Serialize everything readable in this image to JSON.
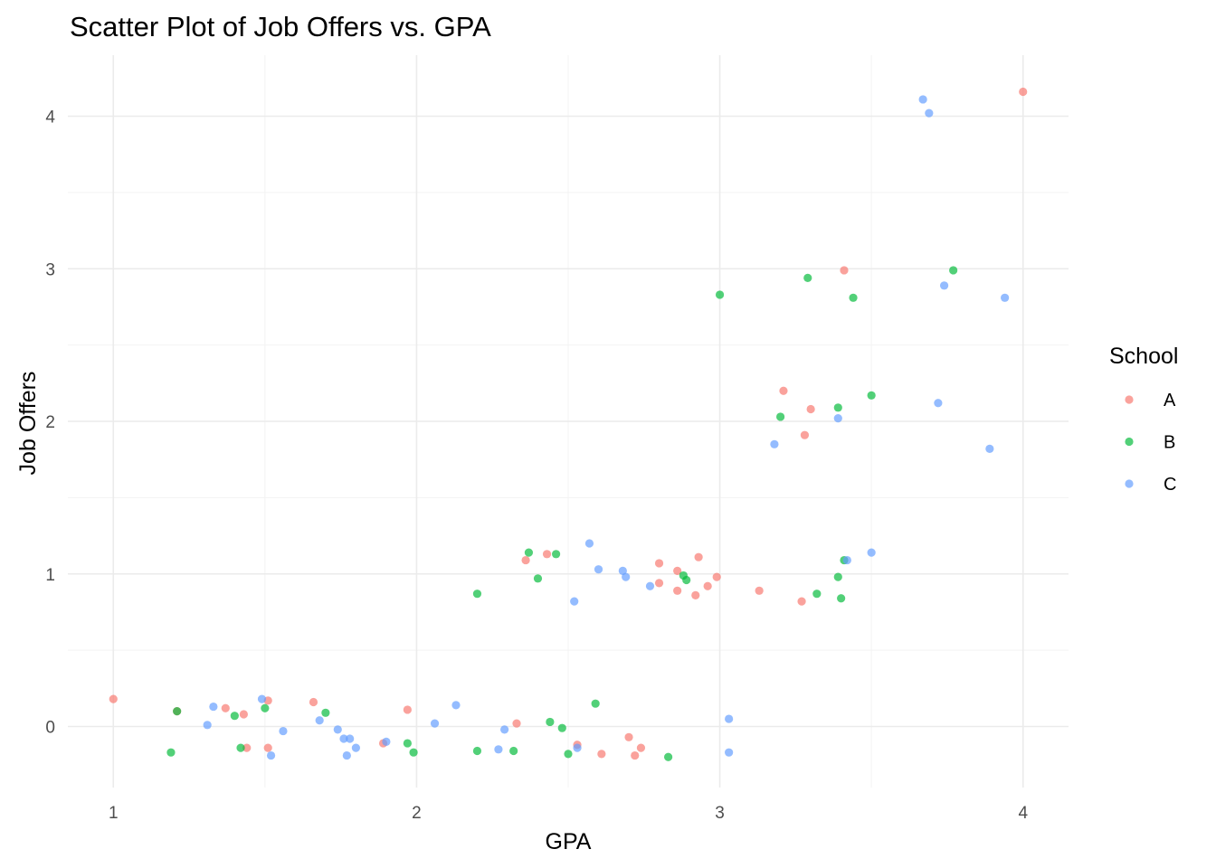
{
  "chart_data": {
    "type": "scatter",
    "title": "Scatter Plot of Job Offers vs. GPA",
    "xlabel": "GPA",
    "ylabel": "Job Offers",
    "xlim": [
      0.85,
      4.15
    ],
    "ylim": [
      -0.4,
      4.4
    ],
    "x_ticks": [
      1,
      2,
      3,
      4
    ],
    "y_ticks": [
      0,
      1,
      2,
      3,
      4
    ],
    "grid": true,
    "legend": {
      "title": "School",
      "position": "right"
    },
    "series": [
      {
        "name": "A",
        "color": "#F8766D",
        "points": [
          [
            1.0,
            0.18
          ],
          [
            1.21,
            0.1
          ],
          [
            1.37,
            0.12
          ],
          [
            1.43,
            0.08
          ],
          [
            1.44,
            -0.14
          ],
          [
            1.51,
            -0.14
          ],
          [
            1.51,
            0.17
          ],
          [
            1.66,
            0.16
          ],
          [
            1.89,
            -0.11
          ],
          [
            1.97,
            0.11
          ],
          [
            2.33,
            0.02
          ],
          [
            2.36,
            1.09
          ],
          [
            2.43,
            1.13
          ],
          [
            2.53,
            -0.12
          ],
          [
            2.61,
            -0.18
          ],
          [
            2.7,
            -0.07
          ],
          [
            2.72,
            -0.19
          ],
          [
            2.74,
            -0.14
          ],
          [
            2.8,
            1.07
          ],
          [
            2.8,
            0.94
          ],
          [
            2.86,
            1.02
          ],
          [
            2.86,
            0.89
          ],
          [
            2.92,
            0.86
          ],
          [
            2.93,
            1.11
          ],
          [
            2.96,
            0.92
          ],
          [
            2.99,
            0.98
          ],
          [
            3.13,
            0.89
          ],
          [
            3.21,
            2.2
          ],
          [
            3.27,
            0.82
          ],
          [
            3.28,
            1.91
          ],
          [
            3.3,
            2.08
          ],
          [
            3.41,
            2.99
          ],
          [
            4.0,
            4.16
          ]
        ]
      },
      {
        "name": "B",
        "color": "#00BA38",
        "points": [
          [
            1.19,
            -0.17
          ],
          [
            1.21,
            0.1
          ],
          [
            1.4,
            0.07
          ],
          [
            1.42,
            -0.14
          ],
          [
            1.5,
            0.12
          ],
          [
            1.7,
            0.09
          ],
          [
            1.97,
            -0.11
          ],
          [
            1.99,
            -0.17
          ],
          [
            2.2,
            0.87
          ],
          [
            2.2,
            -0.16
          ],
          [
            2.32,
            -0.16
          ],
          [
            2.37,
            1.14
          ],
          [
            2.4,
            0.97
          ],
          [
            2.44,
            0.03
          ],
          [
            2.46,
            1.13
          ],
          [
            2.48,
            -0.01
          ],
          [
            2.5,
            -0.18
          ],
          [
            2.59,
            0.15
          ],
          [
            2.83,
            -0.2
          ],
          [
            2.88,
            0.99
          ],
          [
            2.89,
            0.96
          ],
          [
            3.0,
            2.83
          ],
          [
            3.2,
            2.03
          ],
          [
            3.29,
            2.94
          ],
          [
            3.32,
            0.87
          ],
          [
            3.39,
            0.98
          ],
          [
            3.39,
            2.09
          ],
          [
            3.4,
            0.84
          ],
          [
            3.41,
            1.09
          ],
          [
            3.44,
            2.81
          ],
          [
            3.5,
            2.17
          ],
          [
            3.77,
            2.99
          ]
        ]
      },
      {
        "name": "C",
        "color": "#619CFF",
        "points": [
          [
            1.31,
            0.01
          ],
          [
            1.33,
            0.13
          ],
          [
            1.49,
            0.18
          ],
          [
            1.52,
            -0.19
          ],
          [
            1.56,
            -0.03
          ],
          [
            1.68,
            0.04
          ],
          [
            1.74,
            -0.02
          ],
          [
            1.76,
            -0.08
          ],
          [
            1.77,
            -0.19
          ],
          [
            1.78,
            -0.08
          ],
          [
            1.8,
            -0.14
          ],
          [
            1.9,
            -0.1
          ],
          [
            2.06,
            0.02
          ],
          [
            2.13,
            0.14
          ],
          [
            2.27,
            -0.15
          ],
          [
            2.29,
            -0.02
          ],
          [
            2.52,
            0.82
          ],
          [
            2.53,
            -0.14
          ],
          [
            2.57,
            1.2
          ],
          [
            2.6,
            1.03
          ],
          [
            2.68,
            1.02
          ],
          [
            2.69,
            0.98
          ],
          [
            2.77,
            0.92
          ],
          [
            3.03,
            0.05
          ],
          [
            3.03,
            -0.17
          ],
          [
            3.18,
            1.85
          ],
          [
            3.39,
            2.02
          ],
          [
            3.42,
            1.09
          ],
          [
            3.5,
            1.14
          ],
          [
            3.67,
            4.11
          ],
          [
            3.69,
            4.02
          ],
          [
            3.72,
            2.12
          ],
          [
            3.74,
            2.89
          ],
          [
            3.89,
            1.82
          ],
          [
            3.94,
            2.81
          ]
        ]
      }
    ]
  }
}
